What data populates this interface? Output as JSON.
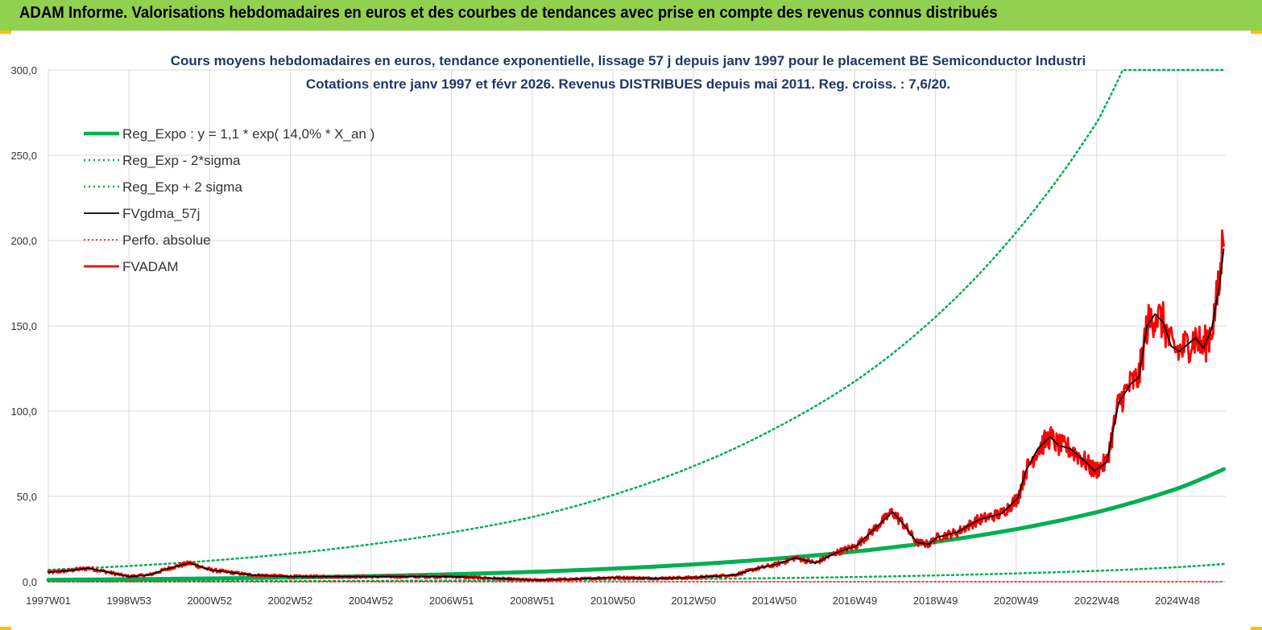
{
  "header": {
    "title": "ADAM Informe. Valorisations hebdomadaires en euros et des courbes de tendances avec prise en compte des revenus connus distribués"
  },
  "colors": {
    "banner": "#92d050",
    "accent": "#ffc000",
    "green": "#00b050",
    "red": "#ff0000",
    "black": "#000000"
  },
  "chart_data": {
    "type": "line",
    "title_lines": [
      "Cours moyens hebdomadaires en euros, tendance exponentielle, lissage 57 j depuis janv 1997  pour le placement BE  Semiconductor Industri",
      "Cotations entre janv 1997  et févr  2026.  Revenus  DISTRIBUES  depuis mai  2011.  Reg.  croiss. : 7,6/20."
    ],
    "x_tick_labels": [
      "1997W01",
      "1998W53",
      "2000W52",
      "2002W52",
      "2004W52",
      "2006W51",
      "2008W51",
      "2010W50",
      "2012W50",
      "2014W50",
      "2016W49",
      "2018W49",
      "2020W49",
      "2022W48",
      "2024W48"
    ],
    "y_tick_labels": [
      "0,0",
      "50,0",
      "100,0",
      "150,0",
      "200,0",
      "250,0",
      "300,0"
    ],
    "x_range": [
      1997.0,
      2026.15
    ],
    "ylim": [
      0,
      300
    ],
    "grid": true,
    "legend_position": "top-left",
    "series": [
      {
        "name": "Reg_Expo : y = 1,1 * exp( 14,0% *  X_an )",
        "color": "#00b050",
        "style": "solid-thick",
        "x": [
          1997,
          1999,
          2001,
          2003,
          2005,
          2007,
          2009,
          2011,
          2013,
          2015,
          2017,
          2019,
          2021,
          2023,
          2024,
          2025,
          2026.1
        ],
        "y": [
          1.1,
          1.45,
          1.9,
          2.5,
          3.3,
          4.4,
          5.8,
          7.7,
          10.2,
          13.5,
          17.8,
          23.5,
          31,
          41,
          47.5,
          55,
          66
        ]
      },
      {
        "name": "Reg_Exp - 2*sigma",
        "color": "#00b050",
        "style": "dotted",
        "x": [
          1997,
          1999,
          2001,
          2003,
          2005,
          2007,
          2009,
          2011,
          2013,
          2015,
          2017,
          2019,
          2021,
          2023,
          2024,
          2025,
          2026.1
        ],
        "y": [
          0.17,
          0.22,
          0.29,
          0.38,
          0.5,
          0.67,
          0.88,
          1.2,
          1.6,
          2.1,
          2.8,
          3.7,
          4.9,
          6.4,
          7.4,
          8.6,
          10.4
        ]
      },
      {
        "name": "Reg_Exp + 2 sigma",
        "color": "#00b050",
        "style": "dotted",
        "x": [
          1997,
          1999,
          2001,
          2003,
          2005,
          2007,
          2009,
          2011,
          2013,
          2015,
          2017,
          2019,
          2021,
          2023,
          2023.6,
          2024,
          2025,
          2026.1
        ],
        "y": [
          7,
          9.2,
          12.3,
          16.5,
          22,
          29,
          38,
          51,
          68,
          90,
          118,
          156,
          206,
          271,
          300,
          300,
          300,
          300
        ]
      },
      {
        "name": "FVgdma_57j",
        "color": "#000000",
        "style": "solid-thin",
        "x": [
          1997,
          1997.5,
          1998,
          1998.5,
          1999,
          1999.5,
          2000,
          2000.5,
          2001,
          2002,
          2003,
          2004,
          2005,
          2006,
          2007,
          2008,
          2009,
          2010,
          2011,
          2012,
          2013,
          2014,
          2014.5,
          2015,
          2015.5,
          2016,
          2016.5,
          2017,
          2017.5,
          2017.9,
          2018.2,
          2018.5,
          2018.8,
          2019,
          2019.5,
          2020,
          2020.3,
          2020.6,
          2021,
          2021.2,
          2021.5,
          2021.8,
          2022,
          2022.3,
          2022.6,
          2022.9,
          2023.2,
          2023.5,
          2023.8,
          2024,
          2024.2,
          2024.4,
          2024.6,
          2024.8,
          2025,
          2025.2,
          2025.4,
          2025.6,
          2025.8,
          2026,
          2026.1
        ],
        "y": [
          5.5,
          6.5,
          8,
          5.5,
          3,
          4,
          8,
          11,
          7,
          4,
          3,
          3,
          3,
          3,
          3,
          2,
          1,
          1.5,
          2.5,
          2,
          2.5,
          4,
          7.5,
          10,
          14,
          11,
          17,
          21,
          32,
          41,
          33,
          23,
          22,
          26,
          29,
          36,
          38,
          40,
          49,
          65,
          78,
          85,
          80,
          78,
          72,
          65,
          70,
          105,
          116,
          120,
          150,
          157,
          152,
          138,
          135,
          139,
          143,
          137,
          148,
          175,
          195
        ]
      },
      {
        "name": "Perfo. absolue",
        "color": "#ff0000",
        "style": "dotted-thin",
        "x": [
          1997,
          2026.1
        ],
        "y": [
          0,
          0
        ]
      },
      {
        "name": "FVADAM",
        "color": "#ff0000",
        "style": "solid-thick-noisy",
        "x": [
          1997,
          1997.5,
          1998,
          1998.5,
          1999,
          1999.5,
          2000,
          2000.5,
          2001,
          2002,
          2003,
          2004,
          2005,
          2006,
          2007,
          2008,
          2009,
          2010,
          2011,
          2012,
          2013,
          2014,
          2014.5,
          2015,
          2015.5,
          2016,
          2016.5,
          2017,
          2017.5,
          2017.9,
          2018.2,
          2018.5,
          2018.8,
          2019,
          2019.5,
          2020,
          2020.3,
          2020.6,
          2021,
          2021.2,
          2021.5,
          2021.8,
          2022,
          2022.3,
          2022.6,
          2022.9,
          2023.2,
          2023.5,
          2023.8,
          2024,
          2024.2,
          2024.4,
          2024.6,
          2024.8,
          2025,
          2025.2,
          2025.4,
          2025.6,
          2025.8,
          2026,
          2026.1
        ],
        "y": [
          5.5,
          6.5,
          8,
          5.5,
          3,
          4,
          8,
          11,
          7,
          4,
          3,
          3,
          3,
          3,
          3,
          2,
          1,
          1.5,
          2.5,
          2,
          2.5,
          4,
          7.5,
          10,
          14,
          11,
          17,
          21,
          32,
          41,
          33,
          23,
          22,
          26,
          29,
          36,
          38,
          40,
          49,
          65,
          78,
          85,
          80,
          78,
          72,
          65,
          70,
          105,
          116,
          120,
          150,
          157,
          152,
          138,
          135,
          139,
          143,
          137,
          148,
          175,
          210
        ]
      }
    ]
  }
}
